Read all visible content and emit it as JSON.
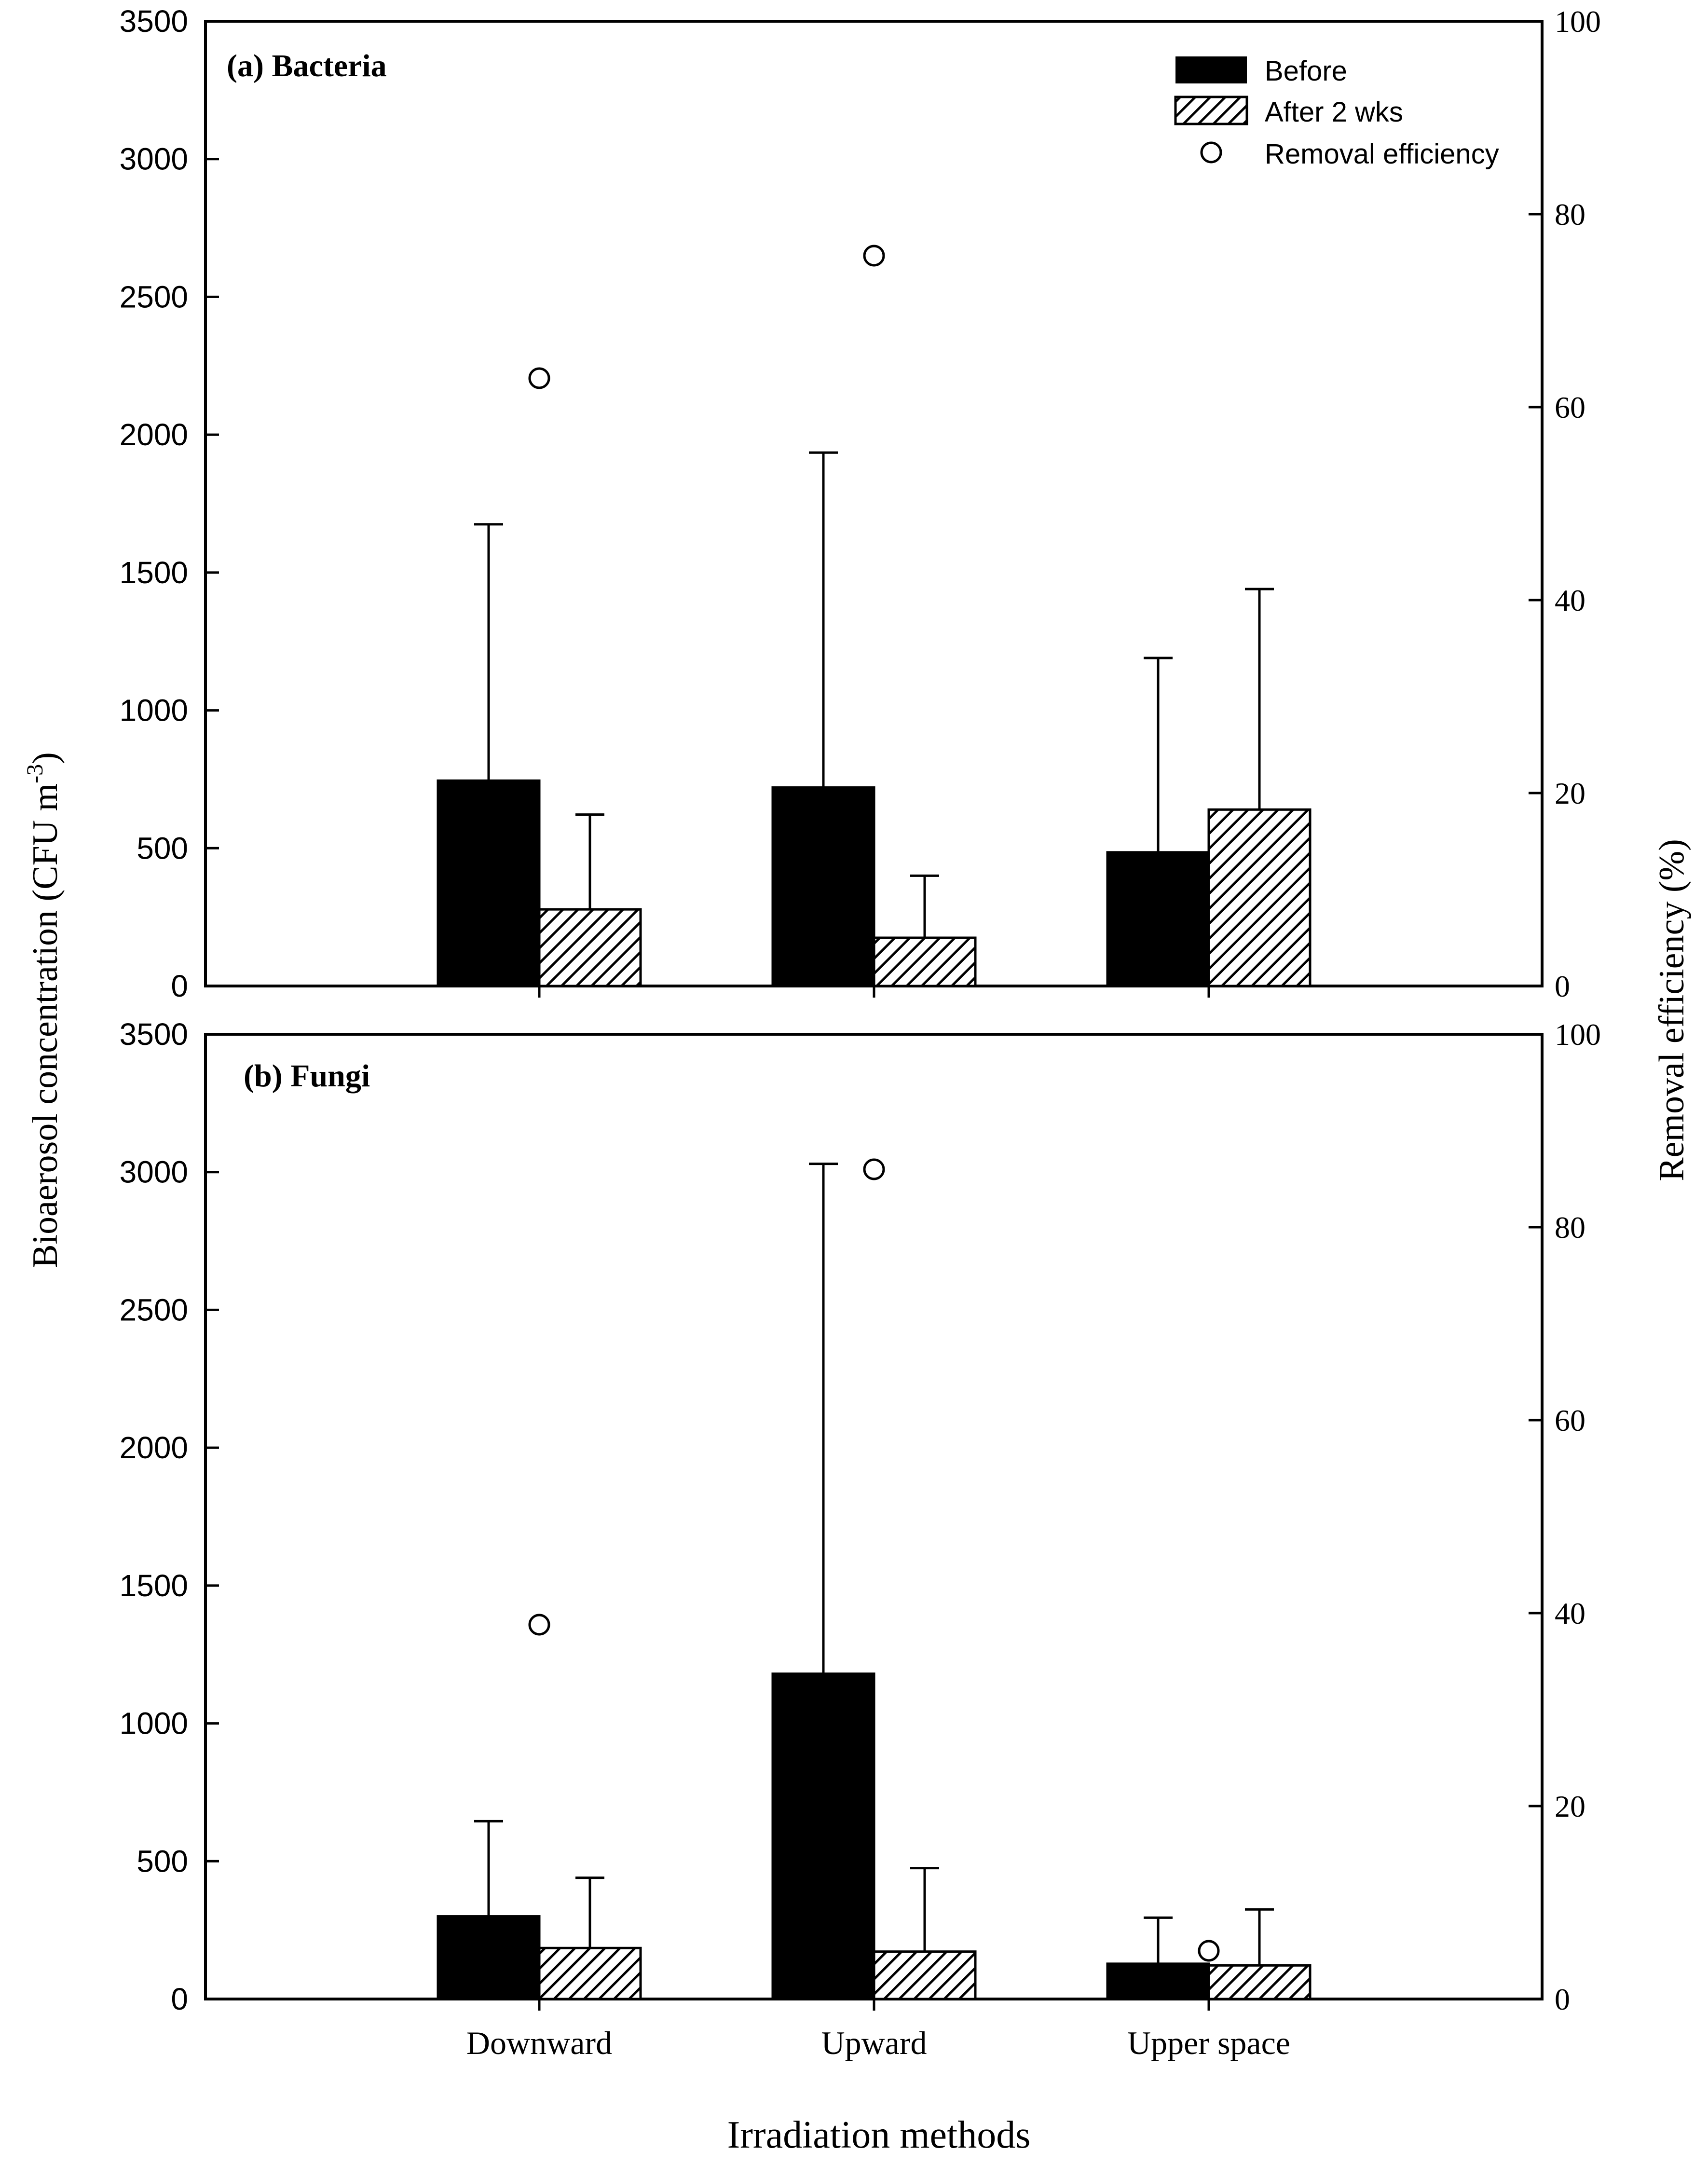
{
  "figure": {
    "ylabel_left": "Bioaerosol concentration (CFU m",
    "ylabel_left_sup": "-3",
    "ylabel_left_close": ")",
    "ylabel_right": "Removal efficiency (%)",
    "xlabel": "Irradiation methods"
  },
  "legend": {
    "items": [
      {
        "label": "Before",
        "type": "bar-solid"
      },
      {
        "label": "After 2 wks",
        "type": "bar-hatched"
      },
      {
        "label": "Removal efficiency",
        "type": "open-circle"
      }
    ]
  },
  "colors": {
    "before": "#000000",
    "after_hatch": "#000000",
    "after_bg": "#ffffff",
    "axis": "#000000"
  },
  "chart_data": [
    {
      "type": "bar",
      "title": "(a) Bacteria",
      "categories": [
        "Downward",
        "Upward",
        "Upper space"
      ],
      "ylim": [
        0,
        3500
      ],
      "y_ticks": [
        0,
        500,
        1000,
        1500,
        2000,
        2500,
        3000,
        3500
      ],
      "y2lim": [
        0,
        100
      ],
      "y2_ticks": [
        0,
        20,
        40,
        60,
        80,
        100
      ],
      "series": [
        {
          "name": "Before",
          "values": [
            745,
            720,
            485
          ],
          "error_upper": [
            1675,
            1935,
            1190
          ]
        },
        {
          "name": "After 2 wks",
          "values": [
            278,
            175,
            640
          ],
          "error_upper": [
            622,
            400,
            1440
          ]
        },
        {
          "name": "Removal efficiency",
          "axis": "right",
          "values": [
            63,
            75.7,
            null
          ]
        }
      ]
    },
    {
      "type": "bar",
      "title": "(b) Fungi",
      "categories": [
        "Downward",
        "Upward",
        "Upper space"
      ],
      "ylim": [
        0,
        3500
      ],
      "y_ticks": [
        0,
        500,
        1000,
        1500,
        2000,
        2500,
        3000,
        3500
      ],
      "y2lim": [
        0,
        100
      ],
      "y2_ticks": [
        0,
        20,
        40,
        60,
        80,
        100
      ],
      "series": [
        {
          "name": "Before",
          "values": [
            300,
            1180,
            128
          ],
          "error_upper": [
            645,
            3030,
            295
          ]
        },
        {
          "name": "After 2 wks",
          "values": [
            185,
            172,
            122
          ],
          "error_upper": [
            440,
            475,
            325
          ]
        },
        {
          "name": "Removal efficiency",
          "axis": "right",
          "values": [
            38.8,
            86,
            5
          ]
        }
      ]
    }
  ]
}
